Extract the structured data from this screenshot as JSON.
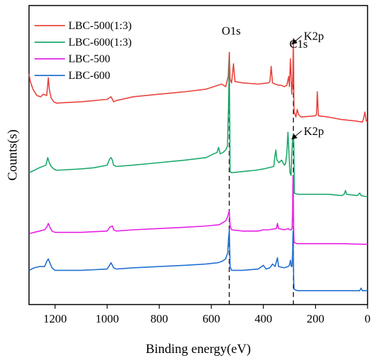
{
  "chart_data": {
    "type": "line",
    "title": "",
    "xlabel": "Binding energy(eV)",
    "ylabel": "Counts(s)",
    "xlim": [
      1300,
      0
    ],
    "x_reversed": true,
    "x_ticks": [
      1200,
      1000,
      800,
      600,
      400,
      200,
      0
    ],
    "y_ticks_shown": false,
    "grid": false,
    "legend": {
      "placement": "top-left",
      "frame": false
    },
    "reference_lines": [
      {
        "x": 531,
        "style": "dashed"
      },
      {
        "x": 285,
        "style": "dashed"
      }
    ],
    "annotations": [
      {
        "text": "O1s",
        "x": 560
      },
      {
        "text": "C1s",
        "x": 300
      },
      {
        "text": "K2p",
        "x": 245,
        "points_to_x": 293,
        "series": "LBC-500(1:3)"
      },
      {
        "text": "K2p",
        "x": 245,
        "points_to_x": 293,
        "series": "LBC-600(1:3)"
      }
    ],
    "series": [
      {
        "name": "LBC-500(1:3)",
        "color": "#e8423c",
        "points": [
          [
            1300,
            8.6
          ],
          [
            1295,
            8.3
          ],
          [
            1285,
            8.0
          ],
          [
            1270,
            7.75
          ],
          [
            1255,
            7.7
          ],
          [
            1245,
            7.8
          ],
          [
            1232,
            7.75
          ],
          [
            1226,
            8.45
          ],
          [
            1222,
            8.0
          ],
          [
            1215,
            7.65
          ],
          [
            1205,
            7.5
          ],
          [
            1195,
            7.45
          ],
          [
            1100,
            7.5
          ],
          [
            1000,
            7.6
          ],
          [
            985,
            7.7
          ],
          [
            975,
            7.5
          ],
          [
            965,
            7.55
          ],
          [
            900,
            7.7
          ],
          [
            800,
            7.8
          ],
          [
            700,
            7.9
          ],
          [
            620,
            8.0
          ],
          [
            575,
            8.15
          ],
          [
            560,
            8.2
          ],
          [
            545,
            8.1
          ],
          [
            535,
            8.5
          ],
          [
            531,
            9.45
          ],
          [
            528,
            8.4
          ],
          [
            522,
            8.25
          ],
          [
            515,
            9.0
          ],
          [
            509,
            8.3
          ],
          [
            480,
            8.25
          ],
          [
            420,
            8.2
          ],
          [
            380,
            8.25
          ],
          [
            375,
            8.3
          ],
          [
            370,
            8.9
          ],
          [
            365,
            8.25
          ],
          [
            355,
            8.2
          ],
          [
            340,
            8.15
          ],
          [
            330,
            8.15
          ],
          [
            320,
            8.1
          ],
          [
            310,
            8.15
          ],
          [
            303,
            8.5
          ],
          [
            300,
            8.1
          ],
          [
            296,
            9.2
          ],
          [
            293,
            8.4
          ],
          [
            291,
            7.8
          ],
          [
            289,
            8.1
          ],
          [
            287,
            8.4
          ],
          [
            285,
            10.0
          ],
          [
            283,
            7.7
          ],
          [
            282,
            7.1
          ],
          [
            275,
            6.9
          ],
          [
            270,
            7.2
          ],
          [
            265,
            7.0
          ],
          [
            255,
            6.9
          ],
          [
            200,
            6.95
          ],
          [
            196,
            7.0
          ],
          [
            193,
            7.9
          ],
          [
            189,
            6.95
          ],
          [
            150,
            6.9
          ],
          [
            100,
            6.8
          ],
          [
            50,
            6.75
          ],
          [
            20,
            6.7
          ],
          [
            15,
            6.85
          ],
          [
            10,
            7.1
          ],
          [
            5,
            6.75
          ],
          [
            0,
            6.7
          ]
        ]
      },
      {
        "name": "LBC-600(1:3)",
        "color": "#1aa86a",
        "points": [
          [
            1300,
            4.7
          ],
          [
            1280,
            4.8
          ],
          [
            1260,
            4.9
          ],
          [
            1235,
            5.0
          ],
          [
            1228,
            5.3
          ],
          [
            1222,
            5.1
          ],
          [
            1215,
            4.95
          ],
          [
            1205,
            4.85
          ],
          [
            1195,
            4.8
          ],
          [
            1100,
            4.85
          ],
          [
            1050,
            4.9
          ],
          [
            1000,
            5.0
          ],
          [
            990,
            5.25
          ],
          [
            985,
            5.3
          ],
          [
            980,
            5.2
          ],
          [
            975,
            5.0
          ],
          [
            965,
            4.95
          ],
          [
            900,
            5.0
          ],
          [
            800,
            5.1
          ],
          [
            700,
            5.2
          ],
          [
            620,
            5.3
          ],
          [
            590,
            5.45
          ],
          [
            578,
            5.5
          ],
          [
            572,
            5.7
          ],
          [
            566,
            5.45
          ],
          [
            555,
            5.5
          ],
          [
            545,
            5.6
          ],
          [
            538,
            5.75
          ],
          [
            534,
            7.3
          ],
          [
            531,
            9.15
          ],
          [
            528,
            4.75
          ],
          [
            522,
            4.7
          ],
          [
            480,
            4.75
          ],
          [
            430,
            4.8
          ],
          [
            400,
            4.85
          ],
          [
            360,
            4.95
          ],
          [
            356,
            5.35
          ],
          [
            352,
            5.6
          ],
          [
            348,
            5.2
          ],
          [
            340,
            5.1
          ],
          [
            330,
            5.2
          ],
          [
            320,
            5.0
          ],
          [
            315,
            5.05
          ],
          [
            310,
            5.5
          ],
          [
            306,
            6.3
          ],
          [
            302,
            5.5
          ],
          [
            298,
            4.7
          ],
          [
            294,
            4.6
          ],
          [
            291,
            5.4
          ],
          [
            288,
            6.0
          ],
          [
            285,
            6.25
          ],
          [
            283,
            5.8
          ],
          [
            281,
            3.9
          ],
          [
            270,
            3.85
          ],
          [
            200,
            3.85
          ],
          [
            150,
            3.85
          ],
          [
            100,
            3.8
          ],
          [
            90,
            3.85
          ],
          [
            85,
            4.0
          ],
          [
            80,
            3.85
          ],
          [
            40,
            3.8
          ],
          [
            30,
            3.9
          ],
          [
            25,
            3.8
          ],
          [
            0,
            3.75
          ]
        ]
      },
      {
        "name": "LBC-500",
        "color": "#e51ee5",
        "points": [
          [
            1300,
            2.3
          ],
          [
            1280,
            2.35
          ],
          [
            1260,
            2.4
          ],
          [
            1240,
            2.45
          ],
          [
            1232,
            2.55
          ],
          [
            1226,
            2.7
          ],
          [
            1220,
            2.55
          ],
          [
            1212,
            2.4
          ],
          [
            1200,
            2.35
          ],
          [
            1100,
            2.35
          ],
          [
            1000,
            2.4
          ],
          [
            990,
            2.55
          ],
          [
            980,
            2.6
          ],
          [
            975,
            2.45
          ],
          [
            965,
            2.4
          ],
          [
            900,
            2.45
          ],
          [
            800,
            2.5
          ],
          [
            700,
            2.55
          ],
          [
            620,
            2.6
          ],
          [
            570,
            2.65
          ],
          [
            545,
            2.8
          ],
          [
            538,
            2.95
          ],
          [
            531,
            3.2
          ],
          [
            528,
            2.6
          ],
          [
            522,
            2.45
          ],
          [
            480,
            2.4
          ],
          [
            420,
            2.4
          ],
          [
            400,
            2.45
          ],
          [
            380,
            2.45
          ],
          [
            350,
            2.5
          ],
          [
            346,
            2.7
          ],
          [
            342,
            2.5
          ],
          [
            320,
            2.45
          ],
          [
            305,
            2.5
          ],
          [
            298,
            2.45
          ],
          [
            293,
            2.45
          ],
          [
            290,
            2.5
          ],
          [
            288,
            3.05
          ],
          [
            286,
            4.6
          ],
          [
            284,
            2.4
          ],
          [
            282,
            1.95
          ],
          [
            270,
            1.9
          ],
          [
            200,
            1.9
          ],
          [
            100,
            1.9
          ],
          [
            0,
            1.88
          ]
        ]
      },
      {
        "name": "LBC-600",
        "color": "#1f6fd1",
        "points": [
          [
            1300,
            0.85
          ],
          [
            1280,
            0.95
          ],
          [
            1260,
            1.0
          ],
          [
            1240,
            1.0
          ],
          [
            1232,
            1.2
          ],
          [
            1226,
            1.3
          ],
          [
            1220,
            1.15
          ],
          [
            1212,
            0.95
          ],
          [
            1200,
            0.85
          ],
          [
            1100,
            0.85
          ],
          [
            1000,
            0.9
          ],
          [
            985,
            1.15
          ],
          [
            980,
            1.05
          ],
          [
            975,
            0.95
          ],
          [
            965,
            0.9
          ],
          [
            900,
            0.95
          ],
          [
            800,
            1.0
          ],
          [
            700,
            1.05
          ],
          [
            620,
            1.1
          ],
          [
            575,
            1.15
          ],
          [
            560,
            1.2
          ],
          [
            545,
            1.3
          ],
          [
            537,
            1.55
          ],
          [
            534,
            2.1
          ],
          [
            531,
            2.45
          ],
          [
            528,
            1.0
          ],
          [
            522,
            0.85
          ],
          [
            480,
            0.85
          ],
          [
            420,
            0.9
          ],
          [
            400,
            1.05
          ],
          [
            390,
            0.9
          ],
          [
            375,
            0.95
          ],
          [
            365,
            1.1
          ],
          [
            355,
            1.0
          ],
          [
            350,
            1.2
          ],
          [
            346,
            1.35
          ],
          [
            342,
            1.0
          ],
          [
            320,
            0.95
          ],
          [
            305,
            1.0
          ],
          [
            300,
            1.05
          ],
          [
            296,
            1.25
          ],
          [
            293,
            1.0
          ],
          [
            290,
            1.0
          ],
          [
            288,
            1.45
          ],
          [
            286,
            2.4
          ],
          [
            284,
            0.5
          ],
          [
            282,
            0.1
          ],
          [
            270,
            0.05
          ],
          [
            200,
            0.05
          ],
          [
            100,
            0.05
          ],
          [
            30,
            0.05
          ],
          [
            25,
            0.15
          ],
          [
            20,
            0.05
          ],
          [
            0,
            0.05
          ]
        ]
      }
    ]
  }
}
